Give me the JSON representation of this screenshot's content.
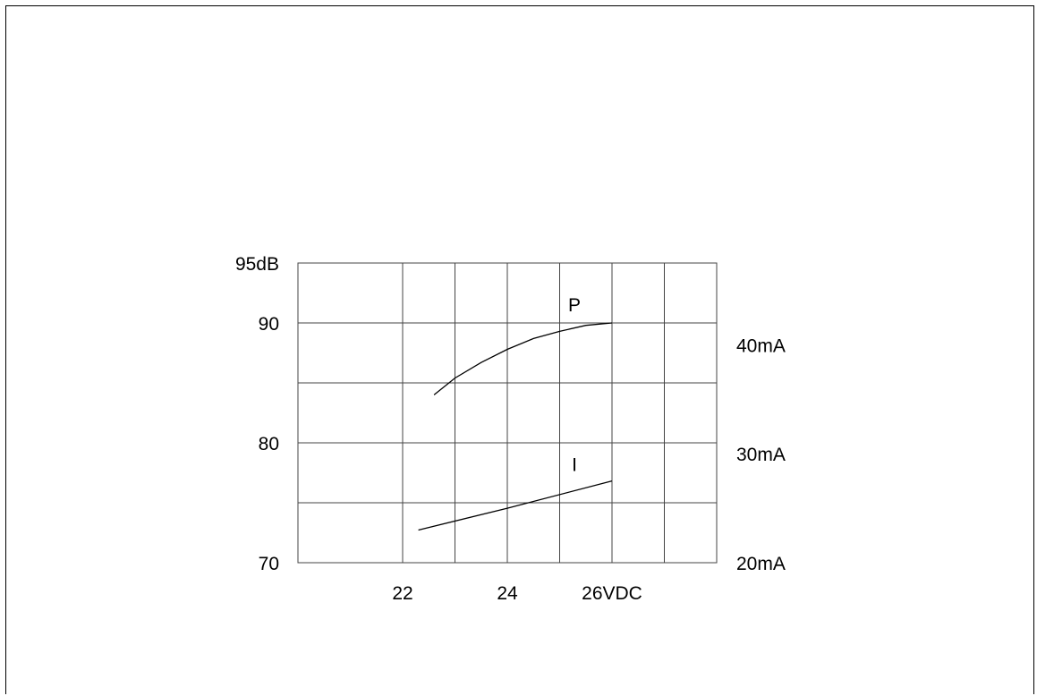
{
  "chart_data": {
    "type": "line",
    "title": "",
    "xlabel": "",
    "ylabel": "",
    "x_ticks": [
      {
        "value": 22,
        "label": "22"
      },
      {
        "value": 24,
        "label": "24"
      },
      {
        "value": 26,
        "label": "26VDC"
      }
    ],
    "xlim": [
      20,
      28
    ],
    "y_left_ticks": [
      {
        "value": 95,
        "label": "95dB"
      },
      {
        "value": 90,
        "label": "90"
      },
      {
        "value": 80,
        "label": "80"
      },
      {
        "value": 70,
        "label": "70"
      }
    ],
    "ylim_left": [
      70,
      95
    ],
    "y_right_ticks": [
      {
        "value": 40,
        "label": "40mA"
      },
      {
        "value": 30,
        "label": "30mA"
      },
      {
        "value": 20,
        "label": "20mA"
      }
    ],
    "ylim_right": [
      20,
      47.5
    ],
    "x_grid": [
      20,
      22,
      23,
      24,
      25,
      26,
      27,
      28
    ],
    "y_grid": [
      70,
      75,
      80,
      85,
      90,
      95
    ],
    "grid": true,
    "series": [
      {
        "name": "P",
        "axis": "left",
        "x": [
          22.6,
          23.0,
          23.5,
          24.0,
          24.5,
          25.0,
          25.5,
          26.0
        ],
        "values": [
          84.0,
          85.4,
          86.7,
          87.8,
          88.7,
          89.3,
          89.8,
          90.0
        ]
      },
      {
        "name": "I",
        "axis": "right",
        "x": [
          22.3,
          24.0,
          26.0
        ],
        "values": [
          23.0,
          25.0,
          27.5
        ]
      }
    ]
  }
}
